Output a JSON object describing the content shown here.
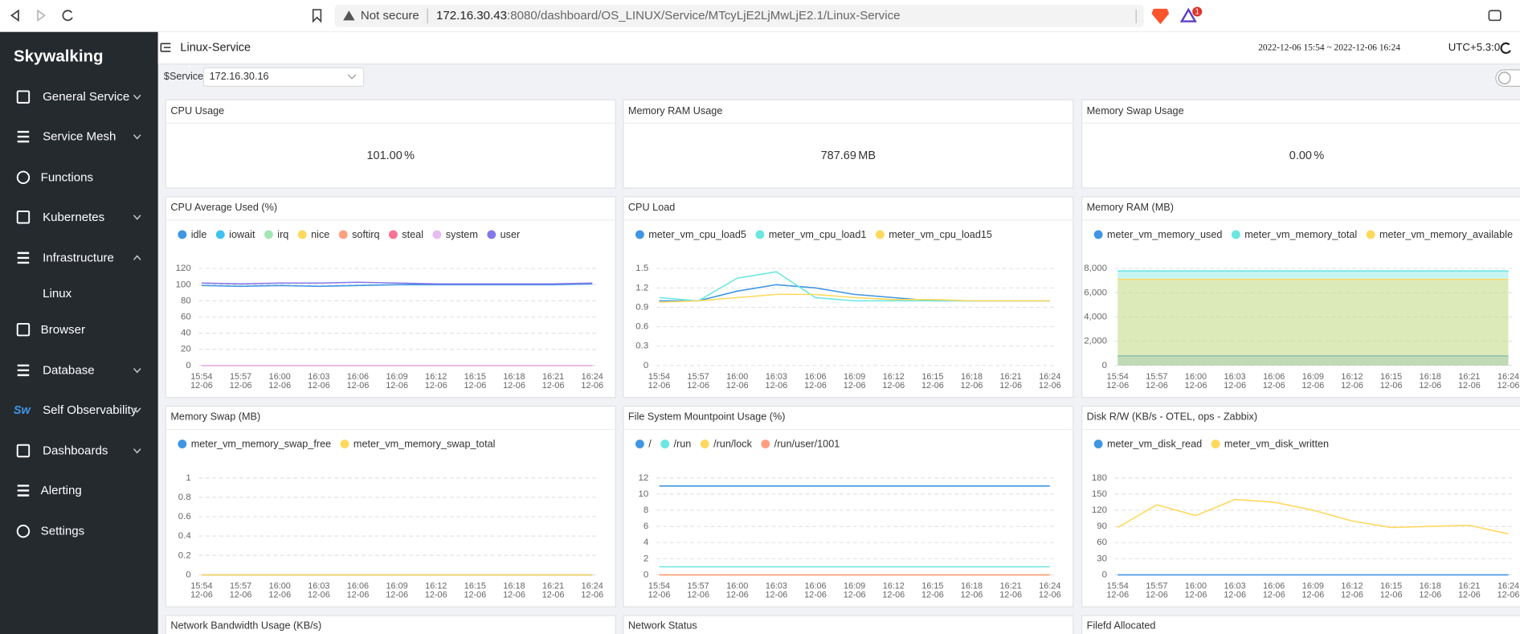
{
  "browser": {
    "security": "Not secure",
    "host": "172.16.30.43",
    "path": ":8080/dashboard/OS_LINUX/Service/MTcyLjE2LjMwLjE2.1/Linux-Service",
    "badge": "1"
  },
  "sidebar": {
    "logo": "Skywalking",
    "items": [
      {
        "label": "General Service",
        "chevron": "down"
      },
      {
        "label": "Service Mesh",
        "chevron": "down"
      },
      {
        "label": "Functions"
      },
      {
        "label": "Kubernetes",
        "chevron": "down"
      },
      {
        "label": "Infrastructure",
        "chevron": "up"
      },
      {
        "label": "Linux",
        "sub": true
      },
      {
        "label": "Browser"
      },
      {
        "label": "Database",
        "chevron": "down"
      },
      {
        "label": "Self Observability",
        "chevron": "down",
        "icon_text": "Sw"
      },
      {
        "label": "Dashboards",
        "chevron": "down"
      },
      {
        "label": "Alerting"
      },
      {
        "label": "Settings"
      }
    ]
  },
  "header": {
    "title": "Linux-Service",
    "time_range": "2022-12-06 15:54 ~ 2022-12-06 16:24",
    "timezone": "UTC+5.3:0"
  },
  "filter": {
    "label": "$Service",
    "value": "172.16.30.16"
  },
  "cards": [
    {
      "title": "CPU Usage",
      "value": "101.00",
      "unit": "%"
    },
    {
      "title": "Memory RAM Usage",
      "value": "787.69",
      "unit": "MB"
    },
    {
      "title": "Memory Swap Usage",
      "value": "0.00",
      "unit": "%"
    }
  ],
  "charts": [
    {
      "type": "line",
      "title": "CPU Average Used (%)",
      "categories": [
        "15:54",
        "15:57",
        "16:00",
        "16:03",
        "16:06",
        "16:09",
        "16:12",
        "16:15",
        "16:18",
        "16:21",
        "16:24"
      ],
      "date": "12-06",
      "ylim": [
        0,
        120
      ],
      "yticks": [
        0,
        20,
        40,
        60,
        80,
        100,
        120
      ],
      "grid": true,
      "series": [
        {
          "name": "idle",
          "color": "#3f96e3",
          "values": [
            99,
            98,
            99,
            98,
            99,
            100,
            100,
            100,
            100,
            100,
            101
          ]
        },
        {
          "name": "iowait",
          "color": "#3fc1f0",
          "values": [
            0,
            0,
            0,
            0,
            0,
            0,
            0,
            0,
            0,
            0,
            0
          ]
        },
        {
          "name": "irq",
          "color": "#a3e6b4",
          "values": [
            0,
            0,
            0,
            0,
            0,
            0,
            0,
            0,
            0,
            0,
            0
          ]
        },
        {
          "name": "nice",
          "color": "#ffd85c",
          "values": [
            0,
            0,
            0,
            0,
            0,
            0,
            0,
            0,
            0,
            0,
            0
          ]
        },
        {
          "name": "softirq",
          "color": "#ff9f7f",
          "values": [
            0,
            0,
            0,
            0,
            0,
            0,
            0,
            0,
            0,
            0,
            0
          ]
        },
        {
          "name": "steal",
          "color": "#fb7293",
          "values": [
            0,
            0,
            0,
            0,
            0,
            0,
            0,
            0,
            0,
            0,
            0
          ]
        },
        {
          "name": "system",
          "color": "#e7bcf3",
          "values": [
            0,
            0,
            0,
            0,
            0,
            0,
            0,
            0,
            0,
            0,
            0
          ]
        },
        {
          "name": "user",
          "color": "#8378ea",
          "values": [
            102,
            101,
            102,
            102,
            103,
            102,
            101,
            101,
            101,
            101,
            102
          ]
        }
      ]
    },
    {
      "type": "line",
      "title": "CPU Load",
      "categories": [
        "15:54",
        "15:57",
        "16:00",
        "16:03",
        "16:06",
        "16:09",
        "16:12",
        "16:15",
        "16:18",
        "16:21",
        "16:24"
      ],
      "date": "12-06",
      "ylim": [
        0,
        1.5
      ],
      "yticks": [
        0,
        0.3,
        0.6,
        0.9,
        1.2,
        1.5
      ],
      "grid": true,
      "series": [
        {
          "name": "meter_vm_cpu_load5",
          "color": "#3f96e3",
          "values": [
            1.0,
            1.0,
            1.15,
            1.25,
            1.2,
            1.1,
            1.05,
            1.0,
            1.0,
            1.0,
            1.0
          ]
        },
        {
          "name": "meter_vm_cpu_load1",
          "color": "#6be6e0",
          "values": [
            1.05,
            1.0,
            1.35,
            1.45,
            1.05,
            1.0,
            1.0,
            1.0,
            1.0,
            1.0,
            1.0
          ]
        },
        {
          "name": "meter_vm_cpu_load15",
          "color": "#ffd85c",
          "values": [
            0.98,
            1.0,
            1.05,
            1.1,
            1.1,
            1.05,
            1.02,
            1.02,
            1.0,
            1.0,
            1.0
          ]
        }
      ]
    },
    {
      "type": "line",
      "title": "Memory RAM (MB)",
      "area": true,
      "categories": [
        "15:54",
        "15:57",
        "16:00",
        "16:03",
        "16:06",
        "16:09",
        "16:12",
        "16:15",
        "16:18",
        "16:21",
        "16:24"
      ],
      "date": "12-06",
      "ylim": [
        0,
        8000
      ],
      "yticks": [
        0,
        {
          "value": 2000,
          "label": "2,000"
        },
        {
          "value": 4000,
          "label": "4,000"
        },
        {
          "value": 6000,
          "label": "6,000"
        },
        {
          "value": 8000,
          "label": "8,000"
        }
      ],
      "grid": true,
      "series": [
        {
          "name": "meter_vm_memory_used",
          "color": "#3f96e3",
          "values": [
            790,
            790,
            790,
            790,
            790,
            790,
            790,
            790,
            790,
            790,
            790
          ]
        },
        {
          "name": "meter_vm_memory_total",
          "color": "#6be6e0",
          "values": [
            7800,
            7800,
            7800,
            7800,
            7800,
            7800,
            7800,
            7800,
            7800,
            7800,
            7800
          ]
        },
        {
          "name": "meter_vm_memory_available",
          "color": "#ffd85c",
          "values": [
            7100,
            7100,
            7100,
            7100,
            7100,
            7100,
            7100,
            7100,
            7100,
            7100,
            7100
          ]
        }
      ]
    },
    {
      "type": "line",
      "title": "Memory Swap (MB)",
      "categories": [
        "15:54",
        "15:57",
        "16:00",
        "16:03",
        "16:06",
        "16:09",
        "16:12",
        "16:15",
        "16:18",
        "16:21",
        "16:24"
      ],
      "date": "12-06",
      "ylim": [
        0,
        1
      ],
      "yticks": [
        0,
        0.2,
        0.4,
        0.6,
        0.8,
        1
      ],
      "grid": true,
      "series": [
        {
          "name": "meter_vm_memory_swap_free",
          "color": "#3f96e3",
          "values": [
            0,
            0,
            0,
            0,
            0,
            0,
            0,
            0,
            0,
            0,
            0
          ]
        },
        {
          "name": "meter_vm_memory_swap_total",
          "color": "#ffd85c",
          "values": [
            0,
            0,
            0,
            0,
            0,
            0,
            0,
            0,
            0,
            0,
            0
          ]
        }
      ]
    },
    {
      "type": "line",
      "title": "File System Mountpoint Usage (%)",
      "categories": [
        "15:54",
        "15:57",
        "16:00",
        "16:03",
        "16:06",
        "16:09",
        "16:12",
        "16:15",
        "16:18",
        "16:21",
        "16:24"
      ],
      "date": "12-06",
      "ylim": [
        0,
        12
      ],
      "yticks": [
        0,
        2,
        4,
        6,
        8,
        10,
        12
      ],
      "grid": true,
      "series": [
        {
          "name": "/",
          "color": "#3f96e3",
          "values": [
            11,
            11,
            11,
            11,
            11,
            11,
            11,
            11,
            11,
            11,
            11
          ]
        },
        {
          "name": "/run",
          "color": "#6be6e0",
          "values": [
            1,
            1,
            1,
            1,
            1,
            1,
            1,
            1,
            1,
            1,
            1
          ]
        },
        {
          "name": "/run/lock",
          "color": "#ffd85c",
          "values": [
            0,
            0,
            0,
            0,
            0,
            0,
            0,
            0,
            0,
            0,
            0
          ]
        },
        {
          "name": "/run/user/1001",
          "color": "#ff9f7f",
          "values": [
            0,
            0,
            0,
            0,
            0,
            0,
            0,
            0,
            0,
            0,
            0
          ]
        }
      ]
    },
    {
      "type": "line",
      "title": "Disk R/W (KB/s - OTEL, ops - Zabbix)",
      "categories": [
        "15:54",
        "15:57",
        "16:00",
        "16:03",
        "16:06",
        "16:09",
        "16:12",
        "16:15",
        "16:18",
        "16:21",
        "16:24"
      ],
      "date": "12-06",
      "ylim": [
        0,
        180
      ],
      "yticks": [
        0,
        30,
        60,
        90,
        120,
        150,
        180
      ],
      "grid": true,
      "series": [
        {
          "name": "meter_vm_disk_read",
          "color": "#3f96e3",
          "values": [
            0,
            0,
            0,
            0,
            0,
            0,
            0,
            0,
            0,
            0,
            0
          ]
        },
        {
          "name": "meter_vm_disk_written",
          "color": "#ffd85c",
          "values": [
            88,
            130,
            110,
            140,
            135,
            120,
            100,
            88,
            90,
            92,
            76
          ]
        }
      ]
    }
  ],
  "bottom_titles": [
    "Network Bandwidth Usage (KB/s)",
    "Network Status",
    "Filefd Allocated"
  ]
}
